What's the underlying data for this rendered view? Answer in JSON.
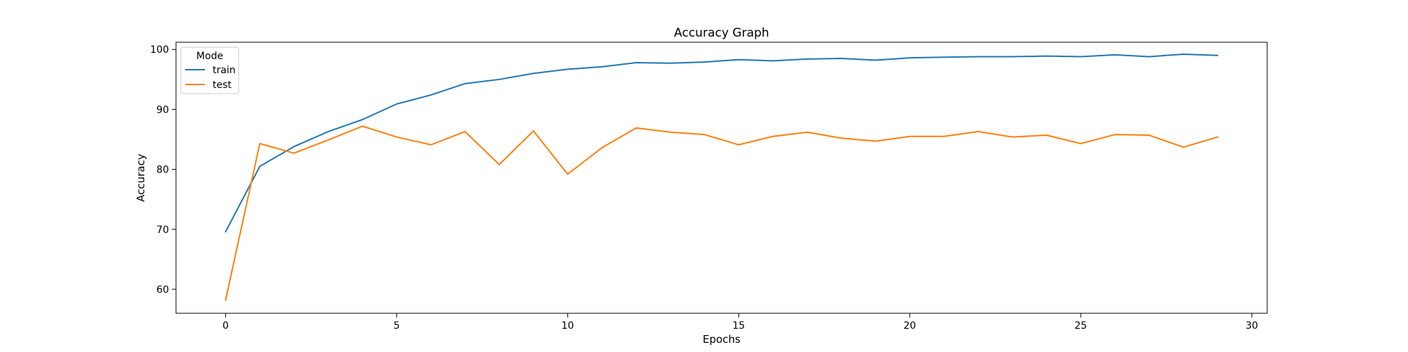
{
  "chart_data": {
    "type": "line",
    "title": "Accuracy Graph",
    "xlabel": "Epochs",
    "ylabel": "Accuracy",
    "xlim": [
      -1.45,
      30.45
    ],
    "ylim": [
      56.0,
      101.2
    ],
    "x_ticks": [
      0,
      5,
      10,
      15,
      20,
      25,
      30
    ],
    "y_ticks": [
      60,
      70,
      80,
      90,
      100
    ],
    "grid": false,
    "legend": {
      "title": "Mode",
      "placement": "top-left"
    },
    "x": [
      0,
      1,
      2,
      3,
      4,
      5,
      6,
      7,
      8,
      9,
      10,
      11,
      12,
      13,
      14,
      15,
      16,
      17,
      18,
      19,
      20,
      21,
      22,
      23,
      24,
      25,
      26,
      27,
      28,
      29
    ],
    "series": [
      {
        "name": "train",
        "color": "#1f77b4",
        "values": [
          69.6,
          80.5,
          83.8,
          86.3,
          88.3,
          90.9,
          92.4,
          94.3,
          95.0,
          96.0,
          96.7,
          97.1,
          97.8,
          97.7,
          97.9,
          98.3,
          98.1,
          98.4,
          98.5,
          98.2,
          98.6,
          98.7,
          98.8,
          98.8,
          98.9,
          98.8,
          99.1,
          98.8,
          99.2,
          99.0
        ]
      },
      {
        "name": "test",
        "color": "#ff7f0e",
        "values": [
          58.2,
          84.3,
          82.7,
          84.9,
          87.2,
          85.4,
          84.1,
          86.3,
          80.8,
          86.4,
          79.2,
          83.6,
          86.9,
          86.2,
          85.8,
          84.1,
          85.5,
          86.2,
          85.2,
          84.7,
          85.5,
          85.5,
          86.3,
          85.4,
          85.7,
          84.3,
          85.8,
          85.7,
          83.7,
          85.4
        ]
      }
    ]
  }
}
